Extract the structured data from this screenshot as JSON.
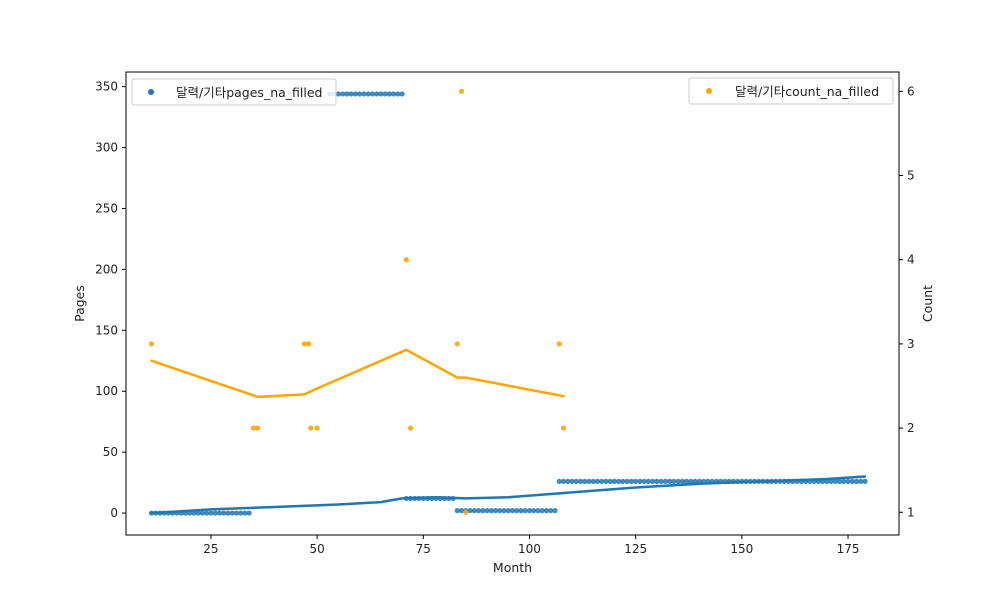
{
  "chart_data": {
    "type": "scatter",
    "xlabel": "Month",
    "ylabel_left": "Pages",
    "ylabel_right": "Count",
    "xlim": [
      5,
      187
    ],
    "ylim_left": [
      -18,
      362
    ],
    "ylim_right": [
      0.73,
      6.23
    ],
    "x_ticks": [
      25,
      50,
      75,
      100,
      125,
      150,
      175
    ],
    "y_left_ticks": [
      0,
      50,
      100,
      150,
      200,
      250,
      300,
      350
    ],
    "y_right_ticks": [
      1,
      2,
      3,
      4,
      5,
      6
    ],
    "grid": false,
    "legend_left": {
      "placement": "top-left",
      "label": "달력/기타pages_na_filled"
    },
    "legend_right": {
      "placement": "top-right",
      "label": "달력/기타count_na_filled"
    },
    "colors": {
      "pages": "#1f77b4",
      "count": "#ffa500"
    },
    "series": [
      {
        "name": "달력/기타pages_na_filled",
        "axis": "left",
        "kind": "scatter",
        "segments": [
          {
            "x_start": 11,
            "x_end": 34,
            "y": 0
          },
          {
            "x_start": 53,
            "x_end": 70,
            "y": 344
          },
          {
            "x_start": 71,
            "x_end": 82,
            "y": 12
          },
          {
            "x_start": 83,
            "x_end": 106,
            "y": 2
          },
          {
            "x_start": 107,
            "x_end": 179,
            "y": 26
          }
        ]
      },
      {
        "name": "pages trend",
        "axis": "left",
        "kind": "line",
        "x": [
          11,
          25,
          40,
          55,
          65,
          70,
          78,
          85,
          95,
          110,
          125,
          140,
          155,
          170,
          179
        ],
        "y": [
          0,
          3,
          5,
          7,
          9,
          12,
          13,
          12,
          13,
          17,
          21,
          24,
          26,
          28,
          30
        ]
      },
      {
        "name": "달력/기타count_na_filled",
        "axis": "right",
        "kind": "scatter",
        "x": [
          11,
          35,
          36,
          47,
          48,
          48.5,
          50,
          71,
          72,
          83,
          84,
          85,
          107,
          108
        ],
        "y": [
          3,
          2,
          2,
          3,
          3,
          2,
          2,
          4,
          2,
          3,
          6,
          1,
          3,
          2
        ]
      },
      {
        "name": "count trend",
        "axis": "right",
        "kind": "line",
        "x": [
          11,
          36,
          47,
          50,
          71,
          83,
          85,
          108
        ],
        "y": [
          2.8,
          2.37,
          2.4,
          2.47,
          2.93,
          2.6,
          2.6,
          2.38
        ]
      }
    ]
  }
}
